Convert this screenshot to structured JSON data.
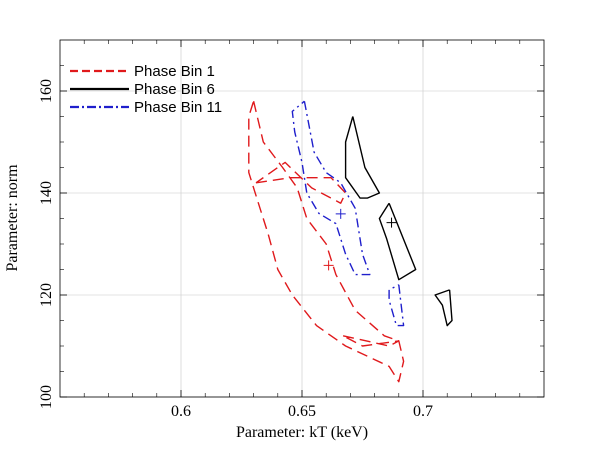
{
  "chart_data": {
    "type": "line",
    "xlabel": "Parameter: kT (keV)",
    "ylabel": "Parameter: norm",
    "xlim": [
      0.55,
      0.75
    ],
    "ylim": [
      100,
      170
    ],
    "x_ticks": [
      0.6,
      0.65,
      0.7
    ],
    "x_tick_labels": [
      "0.6",
      "0.65",
      "0.7"
    ],
    "y_ticks": [
      100,
      120,
      140,
      160
    ],
    "y_tick_labels": [
      "100",
      "120",
      "140",
      "160"
    ],
    "legend_position": "top-left",
    "series": [
      {
        "name": "Phase Bin 1",
        "color": "#e0191c",
        "style": "dashed",
        "best_fit": [
          0.661,
          125.8
        ],
        "contours": [
          [
            [
              0.63,
              158
            ],
            [
              0.634,
              150
            ],
            [
              0.642,
              145
            ],
            [
              0.648,
              141
            ],
            [
              0.652,
              135
            ],
            [
              0.66,
              130
            ],
            [
              0.664,
              124
            ],
            [
              0.672,
              117
            ],
            [
              0.684,
              112
            ],
            [
              0.69,
              111
            ],
            [
              0.692,
              107
            ],
            [
              0.69,
              103
            ],
            [
              0.686,
              106
            ],
            [
              0.668,
              110
            ],
            [
              0.656,
              114
            ],
            [
              0.646,
              120
            ],
            [
              0.64,
              125
            ],
            [
              0.636,
              132
            ],
            [
              0.632,
              138
            ],
            [
              0.628,
              144
            ],
            [
              0.628,
              155
            ],
            [
              0.63,
              158
            ]
          ],
          [
            [
              0.631,
              142
            ],
            [
              0.645,
              143
            ],
            [
              0.662,
              143
            ],
            [
              0.668,
              140
            ],
            [
              0.666,
              138
            ],
            [
              0.654,
              141
            ],
            [
              0.643,
              146
            ],
            [
              0.631,
              142
            ]
          ],
          [
            [
              0.667,
              112
            ],
            [
              0.686,
              110
            ],
            [
              0.69,
              111
            ],
            [
              0.675,
              110
            ],
            [
              0.667,
              112
            ]
          ]
        ]
      },
      {
        "name": "Phase Bin 6",
        "color": "#000000",
        "style": "solid",
        "best_fit": [
          0.687,
          134.2
        ],
        "contours": [
          [
            [
              0.671,
              155
            ],
            [
              0.676,
              145
            ],
            [
              0.682,
              140
            ],
            [
              0.677,
              139
            ],
            [
              0.674,
              139
            ],
            [
              0.668,
              143
            ],
            [
              0.668,
              150
            ],
            [
              0.671,
              155
            ]
          ],
          [
            [
              0.686,
              138
            ],
            [
              0.697,
              125
            ],
            [
              0.69,
              123
            ],
            [
              0.685,
              131
            ],
            [
              0.682,
              135
            ],
            [
              0.686,
              138
            ]
          ],
          [
            [
              0.711,
              121
            ],
            [
              0.712,
              115
            ],
            [
              0.71,
              114
            ],
            [
              0.708,
              118
            ],
            [
              0.705,
              120
            ],
            [
              0.711,
              121
            ]
          ]
        ]
      },
      {
        "name": "Phase Bin 11",
        "color": "#1f1fcc",
        "style": "dash-dot",
        "best_fit": [
          0.666,
          135.9
        ],
        "contours": [
          [
            [
              0.651,
              158
            ],
            [
              0.655,
              148
            ],
            [
              0.66,
              144
            ],
            [
              0.666,
              142
            ],
            [
              0.672,
              137
            ],
            [
              0.675,
              128
            ],
            [
              0.678,
              124
            ],
            [
              0.672,
              124
            ],
            [
              0.668,
              128
            ],
            [
              0.664,
              134
            ],
            [
              0.657,
              136
            ],
            [
              0.652,
              140
            ],
            [
              0.65,
              146
            ],
            [
              0.647,
              152
            ],
            [
              0.646,
              156
            ],
            [
              0.651,
              158
            ]
          ],
          [
            [
              0.69,
              122
            ],
            [
              0.692,
              114
            ],
            [
              0.689,
              114
            ],
            [
              0.686,
              119
            ],
            [
              0.686,
              121
            ],
            [
              0.69,
              122
            ]
          ]
        ]
      }
    ]
  }
}
